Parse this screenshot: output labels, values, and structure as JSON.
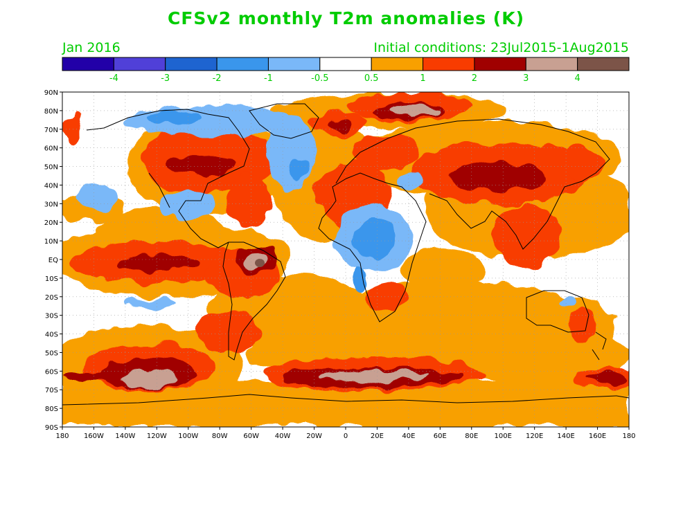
{
  "header": {
    "title": "CFSv2 monthly T2m anomalies (K)",
    "valid_month": "Jan 2016",
    "init_conditions": "Initial conditions: 23Jul2015-1Aug2015"
  },
  "colorbar": {
    "colors": [
      "#2200a8",
      "#5040d8",
      "#1e64d0",
      "#3a96ec",
      "#7ab8f8",
      "#ffffff",
      "#f8a000",
      "#f83c00",
      "#a00000",
      "#c8a092",
      "#7c5448"
    ],
    "labels": [
      "-4",
      "-3",
      "-2",
      "-1",
      "-0.5",
      "0.5",
      "1",
      "2",
      "3",
      "4"
    ],
    "label_color": "#00cc00"
  },
  "map": {
    "lat_labels": [
      "90N",
      "80N",
      "70N",
      "60N",
      "50N",
      "40N",
      "30N",
      "20N",
      "10N",
      "EQ",
      "10S",
      "20S",
      "30S",
      "40S",
      "50S",
      "60S",
      "70S",
      "80S",
      "90S"
    ],
    "lon_labels": [
      "180",
      "160W",
      "140W",
      "120W",
      "100W",
      "80W",
      "60W",
      "40W",
      "20W",
      "0",
      "20E",
      "40E",
      "60E",
      "80E",
      "100E",
      "120E",
      "140E",
      "160E",
      "180"
    ],
    "background_color": "#ffffff"
  }
}
